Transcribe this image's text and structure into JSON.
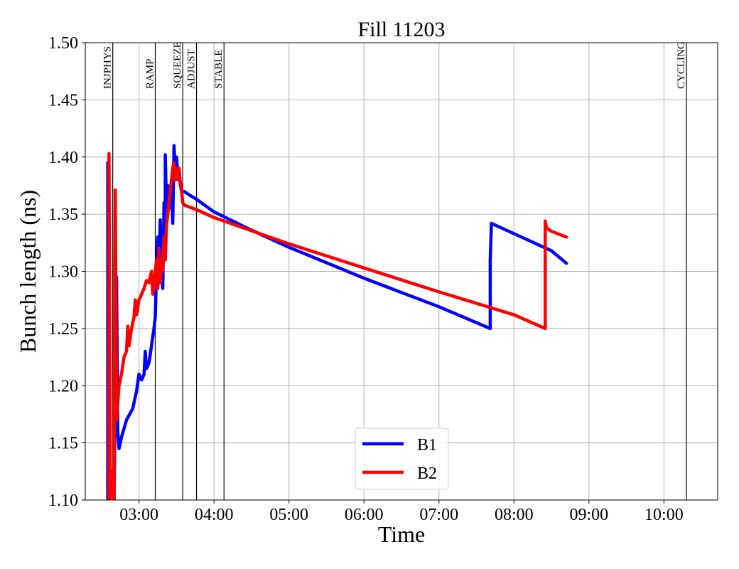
{
  "chart_data": {
    "type": "line",
    "title": "Fill 11203",
    "xlabel": "Time",
    "ylabel": "Bunch length (ns)",
    "x_unit": "time of day (HH:MM)",
    "xlim": [
      "02:17",
      "10:43"
    ],
    "ylim": [
      1.1,
      1.5
    ],
    "x_ticks": [
      "03:00",
      "04:00",
      "05:00",
      "06:00",
      "07:00",
      "08:00",
      "09:00",
      "10:00"
    ],
    "y_ticks": [
      "1.10",
      "1.15",
      "1.20",
      "1.25",
      "1.30",
      "1.35",
      "1.40",
      "1.45",
      "1.50"
    ],
    "grid": true,
    "legend": {
      "position": "bottom-center"
    },
    "phases": [
      {
        "label": "INJPHYS",
        "x": "02:39"
      },
      {
        "label": "RAMP",
        "x": "03:13"
      },
      {
        "label": "SQUEEZE",
        "x": "03:35"
      },
      {
        "label": "ADJUST",
        "x": "03:46"
      },
      {
        "label": "STABLE",
        "x": "04:08"
      },
      {
        "label": "CYCLING",
        "x": "10:18"
      }
    ],
    "series": [
      {
        "name": "B1",
        "color": "#0000ff",
        "points": [
          [
            "02:35",
            1.1
          ],
          [
            "02:35",
            1.395
          ],
          [
            "02:36",
            1.1
          ],
          [
            "02:38",
            1.12
          ],
          [
            "02:40",
            1.1
          ],
          [
            "02:42",
            1.295
          ],
          [
            "02:43",
            1.16
          ],
          [
            "02:44",
            1.145
          ],
          [
            "02:46",
            1.155
          ],
          [
            "02:50",
            1.17
          ],
          [
            "02:55",
            1.18
          ],
          [
            "02:58",
            1.195
          ],
          [
            "03:00",
            1.21
          ],
          [
            "03:02",
            1.205
          ],
          [
            "03:04",
            1.21
          ],
          [
            "03:05",
            1.23
          ],
          [
            "03:06",
            1.215
          ],
          [
            "03:08",
            1.22
          ],
          [
            "03:10",
            1.235
          ],
          [
            "03:12",
            1.25
          ],
          [
            "03:13",
            1.26
          ],
          [
            "03:14",
            1.3
          ],
          [
            "03:15",
            1.33
          ],
          [
            "03:16",
            1.31
          ],
          [
            "03:17",
            1.345
          ],
          [
            "03:18",
            1.3
          ],
          [
            "03:19",
            1.285
          ],
          [
            "03:20",
            1.36
          ],
          [
            "03:21",
            1.34
          ],
          [
            "03:21",
            1.402
          ],
          [
            "03:22",
            1.355
          ],
          [
            "03:23",
            1.375
          ],
          [
            "03:24",
            1.355
          ],
          [
            "03:25",
            1.365
          ],
          [
            "03:26",
            1.37
          ],
          [
            "03:27",
            1.342
          ],
          [
            "03:28",
            1.41
          ],
          [
            "03:29",
            1.39
          ],
          [
            "03:30",
            1.4
          ],
          [
            "03:31",
            1.385
          ],
          [
            "03:32",
            1.39
          ],
          [
            "03:33",
            1.378
          ],
          [
            "03:34",
            1.37
          ],
          [
            "03:36",
            1.37
          ],
          [
            "03:40",
            1.367
          ],
          [
            "03:46",
            1.363
          ],
          [
            "04:00",
            1.352
          ],
          [
            "04:30",
            1.336
          ],
          [
            "05:00",
            1.321
          ],
          [
            "06:00",
            1.294
          ],
          [
            "07:00",
            1.269
          ],
          [
            "07:41",
            1.25
          ],
          [
            "07:41",
            1.31
          ],
          [
            "07:42",
            1.342
          ],
          [
            "08:00",
            1.333
          ],
          [
            "08:30",
            1.318
          ],
          [
            "08:42",
            1.307
          ]
        ]
      },
      {
        "name": "B2",
        "color": "#ff0000",
        "points": [
          [
            "02:36",
            1.1
          ],
          [
            "02:36",
            1.403
          ],
          [
            "02:37",
            1.1
          ],
          [
            "02:38",
            1.125
          ],
          [
            "02:40",
            1.1
          ],
          [
            "02:41",
            1.371
          ],
          [
            "02:42",
            1.17
          ],
          [
            "02:44",
            1.2
          ],
          [
            "02:46",
            1.21
          ],
          [
            "02:48",
            1.225
          ],
          [
            "02:50",
            1.23
          ],
          [
            "02:51",
            1.252
          ],
          [
            "02:52",
            1.235
          ],
          [
            "02:54",
            1.25
          ],
          [
            "02:56",
            1.26
          ],
          [
            "02:57",
            1.275
          ],
          [
            "02:58",
            1.262
          ],
          [
            "03:00",
            1.275
          ],
          [
            "03:02",
            1.28
          ],
          [
            "03:04",
            1.285
          ],
          [
            "03:06",
            1.292
          ],
          [
            "03:08",
            1.29
          ],
          [
            "03:10",
            1.3
          ],
          [
            "03:11",
            1.28
          ],
          [
            "03:12",
            1.29
          ],
          [
            "03:14",
            1.31
          ],
          [
            "03:15",
            1.285
          ],
          [
            "03:16",
            1.32
          ],
          [
            "03:17",
            1.29
          ],
          [
            "03:18",
            1.31
          ],
          [
            "03:19",
            1.3
          ],
          [
            "03:20",
            1.33
          ],
          [
            "03:21",
            1.31
          ],
          [
            "03:22",
            1.34
          ],
          [
            "03:23",
            1.35
          ],
          [
            "03:24",
            1.36
          ],
          [
            "03:25",
            1.37
          ],
          [
            "03:26",
            1.38
          ],
          [
            "03:27",
            1.39
          ],
          [
            "03:28",
            1.395
          ],
          [
            "03:29",
            1.38
          ],
          [
            "03:30",
            1.39
          ],
          [
            "03:31",
            1.38
          ],
          [
            "03:32",
            1.39
          ],
          [
            "03:33",
            1.375
          ],
          [
            "03:34",
            1.372
          ],
          [
            "03:35",
            1.36
          ],
          [
            "03:36",
            1.358
          ],
          [
            "03:46",
            1.354
          ],
          [
            "04:00",
            1.347
          ],
          [
            "05:00",
            1.324
          ],
          [
            "06:00",
            1.303
          ],
          [
            "07:00",
            1.282
          ],
          [
            "08:00",
            1.262
          ],
          [
            "08:25",
            1.25
          ],
          [
            "08:25",
            1.344
          ],
          [
            "08:26",
            1.338
          ],
          [
            "08:30",
            1.335
          ],
          [
            "08:42",
            1.33
          ]
        ]
      }
    ]
  }
}
